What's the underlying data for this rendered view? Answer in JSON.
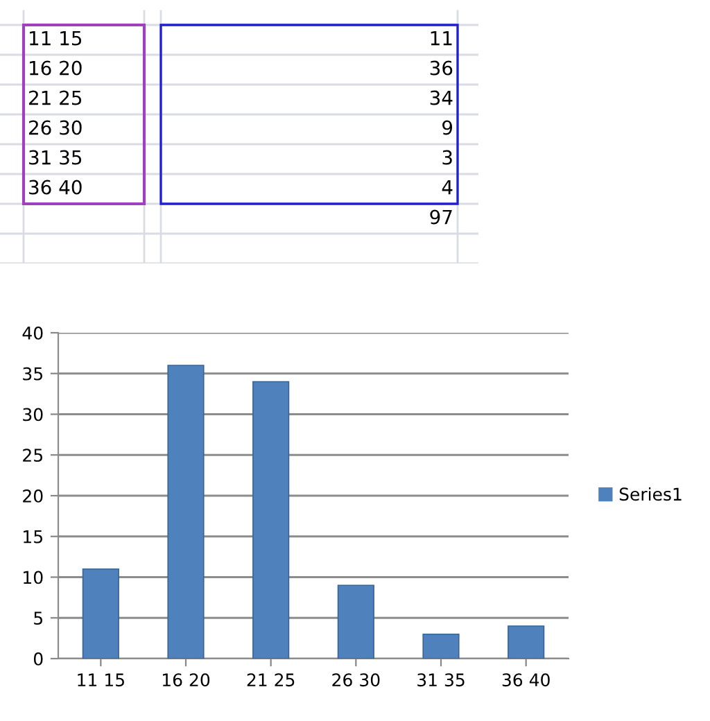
{
  "chart_data": [
    {
      "type": "other",
      "categories": [
        "11 15",
        "16 20",
        "21 25",
        "26 30",
        "31 35",
        "36 40"
      ],
      "annotations": [
        "11",
        "36",
        "34",
        "9",
        "3",
        "4",
        "97"
      ]
    },
    {
      "type": "bar",
      "categories": [
        "11 15",
        "16 20",
        "21 25",
        "26 30",
        "31 35",
        "36 40"
      ],
      "series": [
        {
          "name": "Series1",
          "color": "#4f81bd",
          "values": [
            11,
            36,
            34,
            9,
            3,
            4
          ]
        }
      ],
      "ylim": [
        0,
        40
      ],
      "yticks": [
        0,
        5,
        10,
        15,
        20,
        25,
        30,
        35,
        40
      ],
      "grid": "y",
      "legend": "right"
    }
  ]
}
